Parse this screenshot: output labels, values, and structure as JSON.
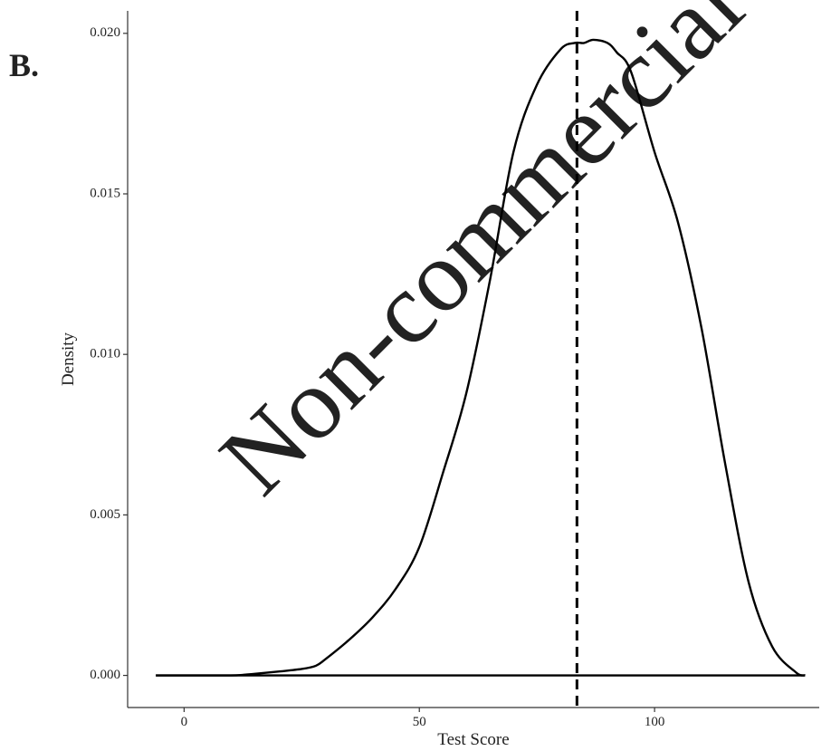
{
  "chart_data": {
    "type": "line",
    "panel_label": "B.",
    "title": "",
    "xlabel": "Test Score",
    "ylabel": "Density",
    "xlim": [
      -12,
      135
    ],
    "ylim": [
      -0.001,
      0.0207
    ],
    "x_ticks": [
      0,
      50,
      100
    ],
    "x_tick_labels": [
      "0",
      "50",
      "100"
    ],
    "y_ticks": [
      0,
      0.005,
      0.01,
      0.015,
      0.02
    ],
    "y_tick_labels": [
      "0.000",
      "0.005",
      "0.010",
      "0.015",
      "0.020"
    ],
    "grid": false,
    "legend": "none",
    "series": [
      {
        "x": [
          -6,
          0,
          5,
          10,
          12,
          15,
          20,
          25,
          28,
          30,
          35,
          40,
          45,
          50,
          55,
          60,
          65,
          70,
          75,
          80,
          83,
          85,
          87,
          90,
          92,
          95,
          100,
          105,
          110,
          115,
          120,
          125,
          130,
          132
        ],
        "y": [
          0,
          0,
          0,
          0,
          1e-05,
          5e-05,
          0.00012,
          0.0002,
          0.0003,
          0.0005,
          0.0011,
          0.0018,
          0.0027,
          0.004,
          0.0063,
          0.0088,
          0.0123,
          0.0163,
          0.0184,
          0.0195,
          0.0197,
          0.0197,
          0.0198,
          0.0197,
          0.0194,
          0.0188,
          0.0163,
          0.0141,
          0.0108,
          0.0066,
          0.0029,
          0.0009,
          0.0001,
          0
        ]
      }
    ],
    "reference_line": {
      "x": 83.5,
      "style": "dashed"
    },
    "baseline": {
      "y": 0,
      "x_range": [
        -6,
        132
      ]
    }
  },
  "watermark": "Non-commercial",
  "colors": {
    "line": "#000000",
    "axis": "#333333",
    "watermark": "#d9d9d9"
  }
}
